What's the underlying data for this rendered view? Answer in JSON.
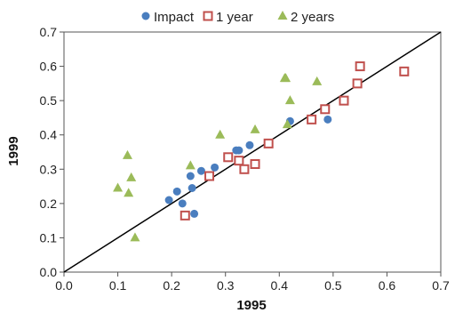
{
  "chart_data": {
    "type": "scatter",
    "xlabel": "1995",
    "ylabel": "1999",
    "xlim": [
      0,
      0.7
    ],
    "ylim": [
      0,
      0.7
    ],
    "xticks": [
      "0.0",
      "0.1",
      "0.2",
      "0.3",
      "0.4",
      "0.5",
      "0.6",
      "0.7"
    ],
    "yticks": [
      "0.0",
      "0.1",
      "0.2",
      "0.3",
      "0.4",
      "0.5",
      "0.6",
      "0.7"
    ],
    "grid": false,
    "legend_position": "top-center",
    "reference_line": {
      "from": [
        0,
        0
      ],
      "to": [
        0.7,
        0.7
      ],
      "color": "#000000"
    },
    "series": [
      {
        "name": "Impact",
        "marker": "circle",
        "color": "#4a7ebf",
        "points": [
          [
            0.195,
            0.21
          ],
          [
            0.21,
            0.235
          ],
          [
            0.22,
            0.2
          ],
          [
            0.235,
            0.28
          ],
          [
            0.238,
            0.245
          ],
          [
            0.242,
            0.17
          ],
          [
            0.255,
            0.295
          ],
          [
            0.28,
            0.305
          ],
          [
            0.32,
            0.355
          ],
          [
            0.325,
            0.355
          ],
          [
            0.345,
            0.37
          ],
          [
            0.42,
            0.44
          ],
          [
            0.49,
            0.445
          ]
        ]
      },
      {
        "name": "1 year",
        "marker": "square-open",
        "color": "#c0504d",
        "points": [
          [
            0.225,
            0.165
          ],
          [
            0.27,
            0.28
          ],
          [
            0.305,
            0.335
          ],
          [
            0.325,
            0.325
          ],
          [
            0.335,
            0.3
          ],
          [
            0.355,
            0.315
          ],
          [
            0.38,
            0.375
          ],
          [
            0.46,
            0.445
          ],
          [
            0.485,
            0.475
          ],
          [
            0.52,
            0.5
          ],
          [
            0.545,
            0.55
          ],
          [
            0.55,
            0.6
          ],
          [
            0.632,
            0.585
          ]
        ]
      },
      {
        "name": "2 years",
        "marker": "triangle",
        "color": "#9bbb59",
        "points": [
          [
            0.1,
            0.245
          ],
          [
            0.118,
            0.34
          ],
          [
            0.12,
            0.23
          ],
          [
            0.125,
            0.275
          ],
          [
            0.132,
            0.1
          ],
          [
            0.235,
            0.31
          ],
          [
            0.29,
            0.4
          ],
          [
            0.355,
            0.415
          ],
          [
            0.41,
            0.565
          ],
          [
            0.412,
            0.565
          ],
          [
            0.415,
            0.43
          ],
          [
            0.42,
            0.5
          ],
          [
            0.47,
            0.555
          ]
        ]
      }
    ]
  }
}
